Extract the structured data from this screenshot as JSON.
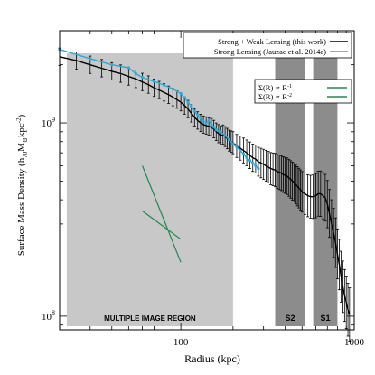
{
  "chart_data": {
    "type": "line",
    "xscale": "log",
    "yscale": "log",
    "xlim": [
      20,
      1000
    ],
    "ylim": [
      85000000,
      3000000000
    ],
    "xlabel": "Radius (kpc)",
    "ylabel_parts": {
      "main": "Surface Mass Density (h",
      "sub1": "70",
      "mid": "M",
      "sub2": "⊙",
      "tail": "kpc",
      "sup": "-2",
      "close": ")"
    },
    "x_ticks": [
      {
        "value": 100,
        "label": "100"
      },
      {
        "value": 1000,
        "label": "1000"
      }
    ],
    "y_ticks": [
      {
        "value": 100000000,
        "base": "10",
        "exp": "8"
      },
      {
        "value": 1000000000,
        "base": "10",
        "exp": "9"
      }
    ],
    "regions": [
      {
        "x0": 22,
        "x1": 200,
        "color": "#c8c8c8",
        "label": "MULTIPLE IMAGE REGION"
      },
      {
        "x0": 350,
        "x1": 520,
        "color": "#8c8c8c",
        "label": "S2"
      },
      {
        "x0": 580,
        "x1": 800,
        "color": "#8c8c8c",
        "label": "S1"
      }
    ],
    "series": [
      {
        "name": "Strong + Weak Lensing (this work)",
        "color": "#000000",
        "points": [
          [
            20,
            2200000000.0
          ],
          [
            25,
            2100000000.0
          ],
          [
            30,
            2000000000.0
          ],
          [
            35,
            1920000000.0
          ],
          [
            40,
            1850000000.0
          ],
          [
            45,
            1800000000.0
          ],
          [
            50,
            1740000000.0
          ],
          [
            55,
            1690000000.0
          ],
          [
            60,
            1630000000.0
          ],
          [
            65,
            1580000000.0
          ],
          [
            70,
            1520000000.0
          ],
          [
            75,
            1480000000.0
          ],
          [
            80,
            1440000000.0
          ],
          [
            85,
            1400000000.0
          ],
          [
            90,
            1360000000.0
          ],
          [
            95,
            1320000000.0
          ],
          [
            100,
            1280000000.0
          ],
          [
            105,
            1230000000.0
          ],
          [
            110,
            1180000000.0
          ],
          [
            115,
            1120000000.0
          ],
          [
            120,
            1070000000.0
          ],
          [
            125,
            1030000000.0
          ],
          [
            130,
            1000000000.0
          ],
          [
            135,
            980000000.0
          ],
          [
            140,
            970000000.0
          ],
          [
            145,
            960000000.0
          ],
          [
            150,
            950000000.0
          ],
          [
            155,
            930000000.0
          ],
          [
            160,
            900000000.0
          ],
          [
            165,
            880000000.0
          ],
          [
            170,
            860000000.0
          ],
          [
            175,
            870000000.0
          ],
          [
            180,
            850000000.0
          ],
          [
            185,
            830000000.0
          ],
          [
            190,
            810000000.0
          ],
          [
            195,
            800000000.0
          ],
          [
            200,
            790000000.0
          ],
          [
            210,
            760000000.0
          ],
          [
            220,
            740000000.0
          ],
          [
            230,
            720000000.0
          ],
          [
            240,
            700000000.0
          ],
          [
            250,
            680000000.0
          ],
          [
            260,
            660000000.0
          ],
          [
            270,
            650000000.0
          ],
          [
            280,
            630000000.0
          ],
          [
            290,
            620000000.0
          ],
          [
            300,
            610000000.0
          ],
          [
            310,
            600000000.0
          ],
          [
            320,
            590000000.0
          ],
          [
            330,
            580000000.0
          ],
          [
            340,
            575000000.0
          ],
          [
            350,
            570000000.0
          ],
          [
            360,
            560000000.0
          ],
          [
            370,
            555000000.0
          ],
          [
            380,
            550000000.0
          ],
          [
            390,
            540000000.0
          ],
          [
            400,
            535000000.0
          ],
          [
            410,
            530000000.0
          ],
          [
            420,
            520000000.0
          ],
          [
            430,
            510000000.0
          ],
          [
            440,
            500000000.0
          ],
          [
            450,
            490000000.0
          ],
          [
            460,
            480000000.0
          ],
          [
            470,
            470000000.0
          ],
          [
            480,
            460000000.0
          ],
          [
            490,
            450000000.0
          ],
          [
            500,
            440000000.0
          ],
          [
            520,
            430000000.0
          ],
          [
            540,
            420000000.0
          ],
          [
            560,
            415000000.0
          ],
          [
            580,
            415000000.0
          ],
          [
            600,
            420000000.0
          ],
          [
            620,
            430000000.0
          ],
          [
            640,
            430000000.0
          ],
          [
            660,
            420000000.0
          ],
          [
            680,
            410000000.0
          ],
          [
            700,
            380000000.0
          ],
          [
            720,
            340000000.0
          ],
          [
            740,
            300000000.0
          ],
          [
            760,
            270000000.0
          ],
          [
            780,
            240000000.0
          ],
          [
            800,
            210000000.0
          ],
          [
            820,
            185000000.0
          ],
          [
            840,
            160000000.0
          ],
          [
            860,
            142000000.0
          ],
          [
            880,
            128000000.0
          ],
          [
            900,
            118000000.0
          ],
          [
            920,
            108000000.0
          ],
          [
            940,
            102000000.0
          ]
        ]
      },
      {
        "name": "Strong Lensing (Jauzac et al. 2014a)",
        "color": "#2ea8d8",
        "points": [
          [
            20,
            2400000000.0
          ],
          [
            30,
            2150000000.0
          ],
          [
            40,
            2000000000.0
          ],
          [
            50,
            1930000000.0
          ],
          [
            55,
            1800000000.0
          ],
          [
            60,
            1720000000.0
          ],
          [
            70,
            1640000000.0
          ],
          [
            80,
            1570000000.0
          ],
          [
            90,
            1500000000.0
          ],
          [
            100,
            1420000000.0
          ],
          [
            105,
            1350000000.0
          ],
          [
            110,
            1280000000.0
          ],
          [
            115,
            1220000000.0
          ],
          [
            120,
            1150000000.0
          ],
          [
            125,
            1100000000.0
          ],
          [
            130,
            1060000000.0
          ],
          [
            135,
            1020000000.0
          ],
          [
            140,
            1000000000.0
          ],
          [
            145,
            1030000000.0
          ],
          [
            150,
            980000000.0
          ],
          [
            155,
            950000000.0
          ],
          [
            160,
            920000000.0
          ],
          [
            170,
            900000000.0
          ],
          [
            180,
            860000000.0
          ],
          [
            190,
            820000000.0
          ],
          [
            200,
            780000000.0
          ],
          [
            210,
            750000000.0
          ],
          [
            220,
            720000000.0
          ],
          [
            230,
            690000000.0
          ],
          [
            240,
            660000000.0
          ],
          [
            250,
            640000000.0
          ],
          [
            260,
            620000000.0
          ],
          [
            270,
            600000000.0
          ],
          [
            280,
            580000000.0
          ]
        ]
      },
      {
        "name": "Σ(R) ∝ R⁻¹",
        "color": "#1e8a4e",
        "points": [
          [
            60,
            350000000.0
          ],
          [
            100,
            250000000.0
          ]
        ]
      },
      {
        "name": "Σ(R) ∝ R⁻²",
        "color": "#1e8a4e",
        "points": [
          [
            60,
            600000000.0
          ],
          [
            100,
            190000000.0
          ]
        ]
      }
    ],
    "legend": "top-right",
    "legend_entries": [
      {
        "text": "Strong + Weak Lensing (this work)",
        "color": "#000000"
      },
      {
        "text": "Strong Lensing (Jauzac et al. 2014a)",
        "color": "#2ea8d8"
      }
    ],
    "legend2": "middle-right",
    "legend2_entries": [
      {
        "prefix": "Σ(R) ∝ R",
        "exp": "-1",
        "color": "#1e8a4e"
      },
      {
        "prefix": "Σ(R) ∝ R",
        "exp": "-2",
        "color": "#1e8a4e"
      }
    ],
    "grid": false
  }
}
